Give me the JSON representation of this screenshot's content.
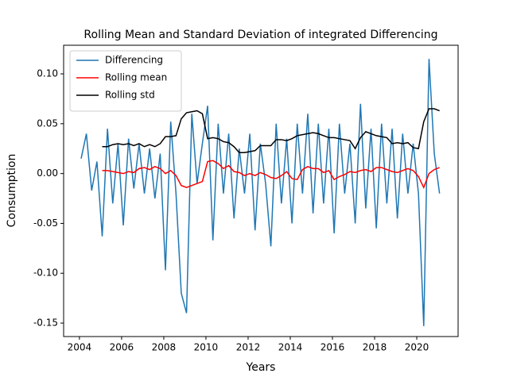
{
  "chart_data": {
    "type": "line",
    "title": "Rolling Mean and Standard Deviation of integrated Differencing",
    "xlabel": "Years",
    "ylabel": "Consumption",
    "x": [
      2004.08,
      2004.33,
      2004.58,
      2004.83,
      2005.08,
      2005.33,
      2005.58,
      2005.83,
      2006.08,
      2006.33,
      2006.58,
      2006.83,
      2007.08,
      2007.33,
      2007.58,
      2007.83,
      2008.08,
      2008.33,
      2008.58,
      2008.83,
      2009.08,
      2009.33,
      2009.58,
      2009.83,
      2010.08,
      2010.33,
      2010.58,
      2010.83,
      2011.08,
      2011.33,
      2011.58,
      2011.83,
      2012.08,
      2012.33,
      2012.58,
      2012.83,
      2013.08,
      2013.33,
      2013.58,
      2013.83,
      2014.08,
      2014.33,
      2014.58,
      2014.83,
      2015.08,
      2015.33,
      2015.58,
      2015.83,
      2016.08,
      2016.33,
      2016.58,
      2016.83,
      2017.08,
      2017.33,
      2017.58,
      2017.83,
      2018.08,
      2018.33,
      2018.58,
      2018.83,
      2019.08,
      2019.33,
      2019.58,
      2019.83,
      2020.08,
      2020.33,
      2020.58,
      2020.83,
      2021.08
    ],
    "series": [
      {
        "name": "Differencing",
        "color": "#1f77b4",
        "values": [
          0.015,
          0.04,
          -0.017,
          0.012,
          -0.063,
          0.045,
          -0.03,
          0.03,
          -0.052,
          0.035,
          -0.015,
          0.03,
          -0.02,
          0.025,
          -0.025,
          0.02,
          -0.097,
          0.052,
          -0.02,
          -0.12,
          -0.14,
          0.06,
          -0.01,
          0.03,
          0.068,
          -0.067,
          0.05,
          -0.02,
          0.04,
          -0.045,
          0.025,
          -0.02,
          0.04,
          -0.057,
          0.03,
          -0.01,
          -0.073,
          0.05,
          -0.03,
          0.035,
          -0.05,
          0.05,
          -0.02,
          0.06,
          -0.04,
          0.05,
          -0.03,
          0.045,
          -0.06,
          0.05,
          -0.02,
          0.03,
          -0.05,
          0.07,
          -0.035,
          0.045,
          -0.055,
          0.05,
          -0.03,
          0.045,
          -0.045,
          0.04,
          -0.02,
          0.03,
          -0.02,
          -0.153,
          0.115,
          0.02,
          -0.02
        ]
      },
      {
        "name": "Rolling mean",
        "color": "#ff0000",
        "values": [
          null,
          null,
          null,
          null,
          0.003,
          0.003,
          0.002,
          0.001,
          0.0,
          0.002,
          0.001,
          0.005,
          0.006,
          0.004,
          0.007,
          0.005,
          0.0,
          0.003,
          -0.002,
          -0.012,
          -0.014,
          -0.012,
          -0.01,
          -0.008,
          0.012,
          0.013,
          0.01,
          0.005,
          0.008,
          0.002,
          0.001,
          -0.002,
          0.0,
          -0.002,
          0.001,
          -0.001,
          -0.004,
          -0.005,
          -0.002,
          0.002,
          -0.005,
          -0.006,
          0.004,
          0.007,
          0.005,
          0.005,
          0.001,
          0.003,
          -0.006,
          -0.003,
          -0.001,
          0.002,
          0.001,
          0.003,
          0.004,
          0.002,
          0.006,
          0.006,
          0.004,
          0.002,
          0.001,
          0.003,
          0.005,
          0.003,
          -0.003,
          -0.014,
          0.0,
          0.004,
          0.006
        ]
      },
      {
        "name": "Rolling std",
        "color": "#000000",
        "values": [
          null,
          null,
          null,
          null,
          0.027,
          0.027,
          0.029,
          0.03,
          0.029,
          0.03,
          0.028,
          0.03,
          0.027,
          0.029,
          0.027,
          0.03,
          0.037,
          0.037,
          0.038,
          0.055,
          0.061,
          0.062,
          0.063,
          0.06,
          0.035,
          0.036,
          0.035,
          0.032,
          0.031,
          0.027,
          0.021,
          0.021,
          0.022,
          0.023,
          0.028,
          0.028,
          0.028,
          0.034,
          0.034,
          0.033,
          0.035,
          0.038,
          0.039,
          0.04,
          0.041,
          0.04,
          0.038,
          0.036,
          0.036,
          0.035,
          0.034,
          0.033,
          0.025,
          0.036,
          0.042,
          0.04,
          0.038,
          0.037,
          0.036,
          0.03,
          0.031,
          0.03,
          0.031,
          0.026,
          0.025,
          0.052,
          0.065,
          0.065,
          0.063
        ]
      }
    ],
    "xlim": [
      2003.25,
      2021.96
    ],
    "xticks": [
      2004,
      2006,
      2008,
      2010,
      2012,
      2014,
      2016,
      2018,
      2020
    ],
    "ylim": [
      -0.1635,
      0.1287
    ],
    "yticks": [
      -0.15,
      {
        "value": -0.1,
        "label": "-0.10"
      },
      -0.05,
      {
        "value": 0,
        "label": "0.00"
      },
      0.05,
      {
        "value": 0.1,
        "label": "0.10"
      }
    ],
    "grid": false,
    "legend": "upper left"
  }
}
